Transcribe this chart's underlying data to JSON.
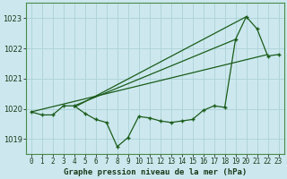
{
  "title": "Graphe pression niveau de la mer (hPa)",
  "background_color": "#cce8ee",
  "grid_color": "#b0d4da",
  "line_color": "#1a5c1a",
  "x_labels": [
    "0",
    "1",
    "2",
    "3",
    "4",
    "5",
    "6",
    "7",
    "8",
    "9",
    "10",
    "11",
    "12",
    "13",
    "14",
    "15",
    "16",
    "17",
    "18",
    "19",
    "20",
    "21",
    "22",
    "23"
  ],
  "ylim": [
    1018.5,
    1023.5
  ],
  "yticks": [
    1019,
    1020,
    1021,
    1022,
    1023
  ],
  "series1": [
    1019.9,
    1019.8,
    1019.8,
    1020.1,
    1020.1,
    1019.85,
    1019.65,
    1019.55,
    1018.75,
    1019.05,
    1019.75,
    1019.7,
    1019.6,
    1019.55,
    1019.6,
    1019.65,
    1019.95,
    1020.1,
    1020.05,
    1022.3,
    1023.05,
    1022.65,
    1021.75,
    1021.8
  ],
  "line2": [
    [
      0,
      1019.9
    ],
    [
      22,
      1021.8
    ]
  ],
  "line3": [
    [
      4,
      1020.1
    ],
    [
      19,
      1022.3
    ]
  ],
  "line4": [
    [
      4,
      1020.05
    ],
    [
      20,
      1023.05
    ]
  ],
  "figsize": [
    3.2,
    2.0
  ],
  "dpi": 100,
  "spine_color": "#4a8a4a",
  "title_fontsize": 6.5,
  "tick_fontsize": 5.5,
  "ytick_fontsize": 6.0
}
